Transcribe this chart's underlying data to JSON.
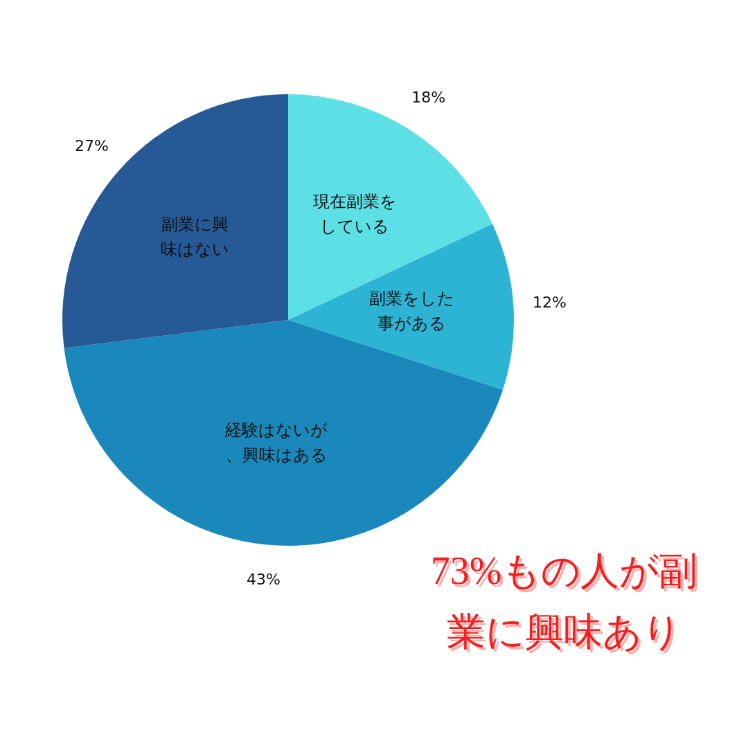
{
  "chart_data": {
    "type": "pie",
    "categories": [
      "現在副業をしている",
      "副業をした事がある",
      "経験はないが、興味はある",
      "副業に興味はない"
    ],
    "values": [
      18,
      12,
      43,
      27
    ],
    "colors": [
      "#5ce0e6",
      "#2db3d4",
      "#1a88ba",
      "#255a96"
    ],
    "value_labels": [
      "18%",
      "12%",
      "43%",
      "27%"
    ],
    "legend": false,
    "annotations": [
      "73%もの人が副業に興味あり"
    ]
  }
}
